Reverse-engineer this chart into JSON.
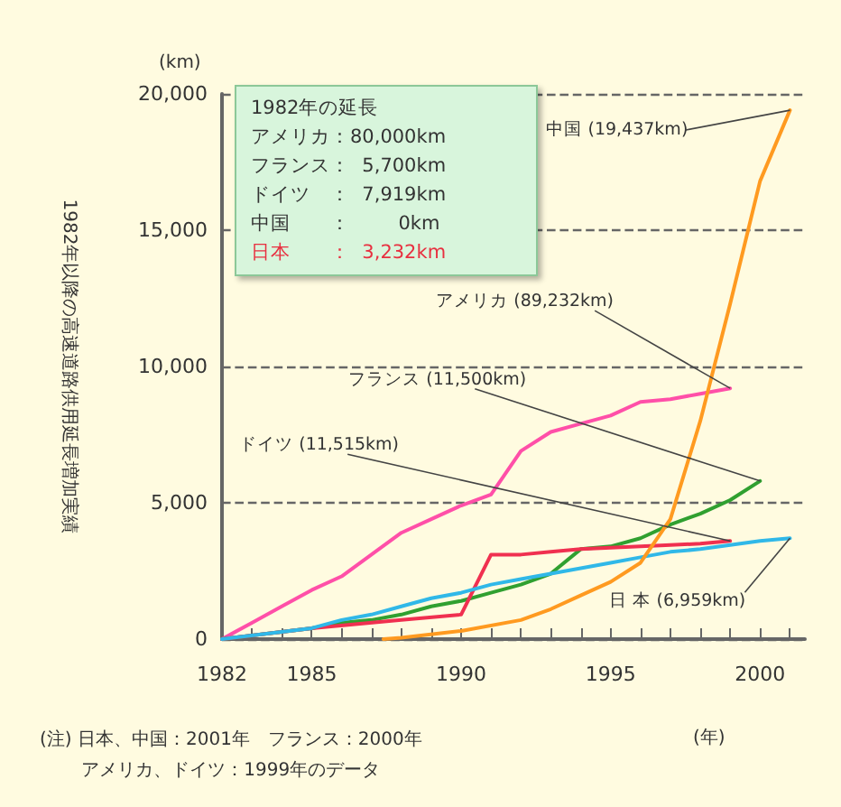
{
  "chart_data": {
    "type": "line",
    "ylabel": "1982年以降の高速道路供用延長増加実績",
    "xlabel": "(年)",
    "y2label": "(km)",
    "xlim": [
      1982,
      2001.5
    ],
    "xticks": [
      1982,
      {
        "value": 1983,
        "label": null
      },
      {
        "value": 1984,
        "label": null
      },
      1985,
      {
        "value": 1986,
        "label": null
      },
      {
        "value": 1987,
        "label": null
      },
      {
        "value": 1988,
        "label": null
      },
      {
        "value": 1989,
        "label": null
      },
      1990,
      {
        "value": 1991,
        "label": null
      },
      {
        "value": 1992,
        "label": null
      },
      {
        "value": 1993,
        "label": null
      },
      {
        "value": 1994,
        "label": null
      },
      1995,
      {
        "value": 1996,
        "label": null
      },
      {
        "value": 1997,
        "label": null
      },
      {
        "value": 1998,
        "label": null
      },
      {
        "value": 1999,
        "label": null
      },
      2000,
      {
        "value": 2001,
        "label": null
      }
    ],
    "ylim": [
      0,
      20000
    ],
    "yticks": [
      0,
      {
        "value": 5000,
        "label": "5,000"
      },
      {
        "value": 10000,
        "label": "10,000"
      },
      {
        "value": 15000,
        "label": "15,000"
      },
      {
        "value": 20000,
        "label": "20,000"
      }
    ],
    "grid": "y",
    "legend": false,
    "marker": "none",
    "line_style": "solid",
    "series": [
      {
        "color": "#ff4fa8",
        "x": [
          1982,
          1983,
          1984,
          1985,
          1986,
          1987,
          1988,
          1989,
          1990,
          1991,
          1992,
          1993,
          1994,
          1995,
          1996,
          1997,
          1998,
          1999
        ],
        "values": [
          0,
          600,
          1200,
          1800,
          2300,
          3100,
          3900,
          4400,
          4900,
          5300,
          6900,
          7600,
          7900,
          8200,
          8700,
          8800,
          9000,
          9200
        ]
      },
      {
        "color": "#30a030",
        "x": [
          1982,
          1985,
          1986,
          1987,
          1988,
          1989,
          1990,
          1991,
          1992,
          1993,
          1994,
          1995,
          1996,
          1997,
          1998,
          1999,
          2000
        ],
        "values": [
          0,
          400,
          600,
          700,
          900,
          1200,
          1400,
          1700,
          2000,
          2400,
          3300,
          3400,
          3700,
          4200,
          4600,
          5100,
          5800
        ]
      },
      {
        "color": "#f03050",
        "x": [
          1982,
          1985,
          1988,
          1990,
          1991,
          1992,
          1993,
          1994,
          1995,
          1996,
          1997,
          1998,
          1999
        ],
        "values": [
          0,
          400,
          700,
          900,
          3100,
          3100,
          3200,
          3300,
          3350,
          3400,
          3450,
          3500,
          3600
        ]
      },
      {
        "color": "#30b8e8",
        "x": [
          1982,
          1985,
          1986,
          1987,
          1988,
          1989,
          1990,
          1991,
          1992,
          1993,
          1994,
          1995,
          1996,
          1997,
          1998,
          1999,
          2000,
          2001
        ],
        "values": [
          0,
          400,
          700,
          900,
          1200,
          1500,
          1700,
          2000,
          2200,
          2400,
          2600,
          2800,
          3000,
          3200,
          3300,
          3450,
          3600,
          3700
        ]
      },
      {
        "color": "#ff9a20",
        "x": [
          1987.4,
          1988,
          1990,
          1992,
          1993,
          1994,
          1995,
          1996,
          1997,
          1998,
          1999,
          2000,
          2001
        ],
        "values": [
          0,
          50,
          300,
          700,
          1100,
          1600,
          2100,
          2800,
          4400,
          8000,
          12300,
          16800,
          19400
        ]
      }
    ],
    "annotations": [
      {
        "text": "中国 (19,437km)",
        "x": 2001,
        "y": 19400
      },
      {
        "text": "アメリカ (89,232km)",
        "x": 1999,
        "y": 9200
      },
      {
        "text": "フランス (11,500km)",
        "x": 2000,
        "y": 5800
      },
      {
        "text": "ドイツ (11,515km)",
        "x": 1999,
        "y": 3600
      },
      {
        "text": "日 本 (6,959km)",
        "x": 2001,
        "y": 3700
      },
      "1982年の延長",
      "アメリカ：80,000km",
      "フランス：  5,700km",
      "ドイツ　：  7,919km",
      "中国　　：        0km",
      "日本　　：  3,232km",
      "(注) 日本、中国：2001年　フランス：2000年",
      "　　 アメリカ、ドイツ：1999年のデータ"
    ]
  }
}
